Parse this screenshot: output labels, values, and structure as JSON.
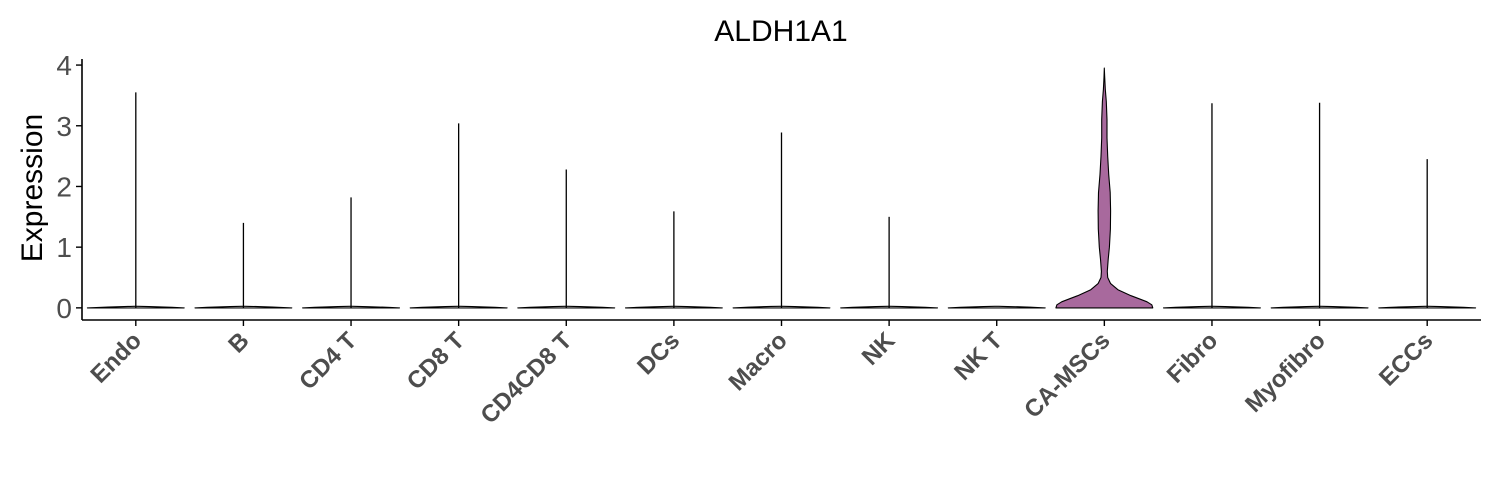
{
  "chart_data": {
    "type": "violin",
    "title": "ALDH1A1",
    "xlabel": "",
    "ylabel": "Expression",
    "ylim": [
      -0.2,
      4.1
    ],
    "yticks": [
      0,
      1,
      2,
      3,
      4
    ],
    "grid": false,
    "legend": "none",
    "categories": [
      "Endo",
      "B",
      "CD4 T",
      "CD8 T",
      "CD4CD8 T",
      "DCs",
      "Macro",
      "NK",
      "NK T",
      "CA-MSCs",
      "Fibro",
      "Myofibro",
      "ECCs"
    ],
    "max_values": [
      3.55,
      1.4,
      1.82,
      3.04,
      2.28,
      1.59,
      2.89,
      1.5,
      0.0,
      3.95,
      3.37,
      3.38,
      2.45
    ],
    "highlight_category": "CA-MSCs",
    "highlight_profile": [
      {
        "y": 0.0,
        "half_width": 1.0
      },
      {
        "y": 0.05,
        "half_width": 0.98
      },
      {
        "y": 0.1,
        "half_width": 0.88
      },
      {
        "y": 0.15,
        "half_width": 0.72
      },
      {
        "y": 0.2,
        "half_width": 0.55
      },
      {
        "y": 0.3,
        "half_width": 0.28
      },
      {
        "y": 0.4,
        "half_width": 0.13
      },
      {
        "y": 0.5,
        "half_width": 0.07
      },
      {
        "y": 0.6,
        "half_width": 0.06
      },
      {
        "y": 0.8,
        "half_width": 0.08
      },
      {
        "y": 1.0,
        "half_width": 0.105
      },
      {
        "y": 1.3,
        "half_width": 0.125
      },
      {
        "y": 1.6,
        "half_width": 0.13
      },
      {
        "y": 1.9,
        "half_width": 0.12
      },
      {
        "y": 2.2,
        "half_width": 0.09
      },
      {
        "y": 2.5,
        "half_width": 0.07
      },
      {
        "y": 2.8,
        "half_width": 0.055
      },
      {
        "y": 3.1,
        "half_width": 0.055
      },
      {
        "y": 3.4,
        "half_width": 0.04
      },
      {
        "y": 3.6,
        "half_width": 0.02
      },
      {
        "y": 3.8,
        "half_width": 0.008
      },
      {
        "y": 3.95,
        "half_width": 0.0
      }
    ],
    "colors": {
      "highlight_fill": "#a8699d",
      "default_fill": "#ffffff",
      "outline": "#000000",
      "text": "#4d4d4d"
    }
  }
}
